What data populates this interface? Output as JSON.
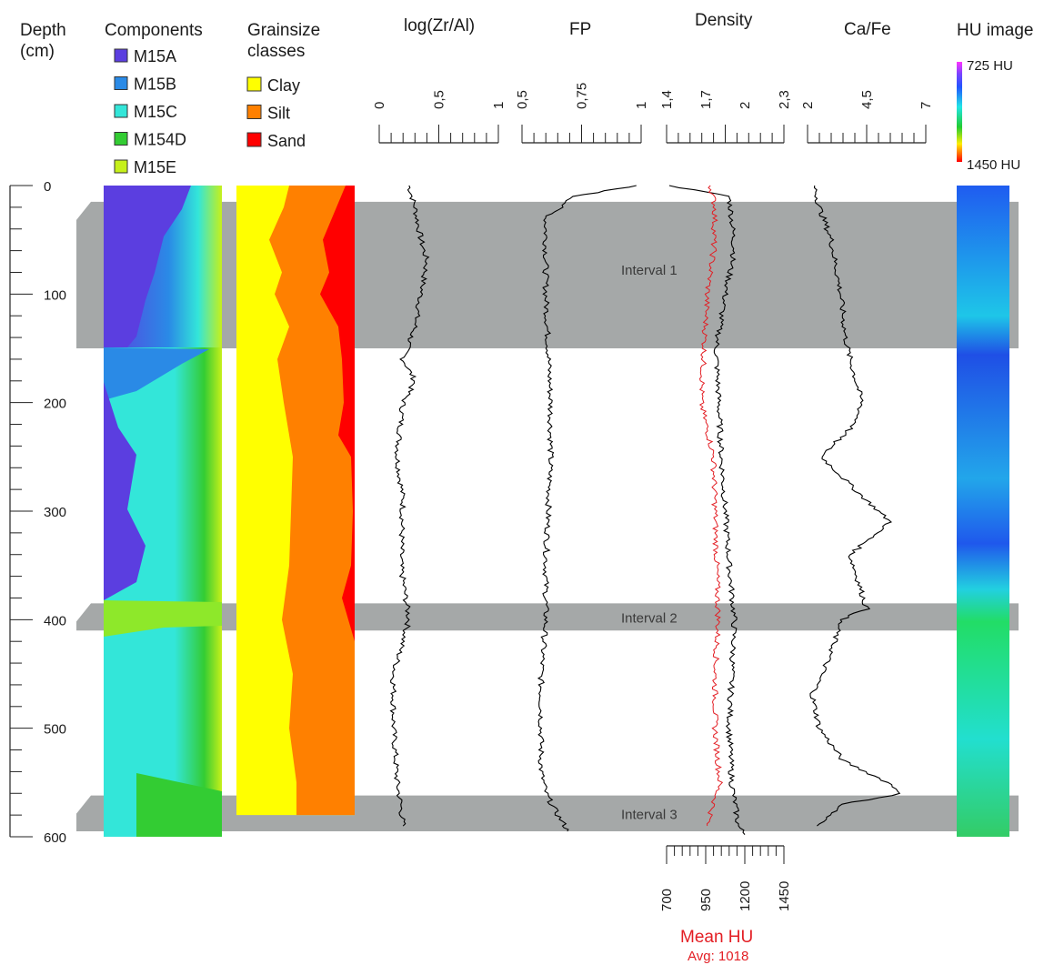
{
  "headers": {
    "depth": "Depth",
    "depth_unit": "(cm)",
    "components": "Components",
    "grainsize": "Grainsize",
    "grainsize2": "classes",
    "zral": "log(Zr/Al)",
    "fp": "FP",
    "density": "Density",
    "cafe": "Ca/Fe",
    "hu": "HU image"
  },
  "components_legend": [
    {
      "label": "M15A",
      "color": "#5b3ee0"
    },
    {
      "label": "M15B",
      "color": "#2a8ae6"
    },
    {
      "label": "M15C",
      "color": "#33e6d9"
    },
    {
      "label": "M154D",
      "color": "#33cc33"
    },
    {
      "label": "M15E",
      "color": "#c6f01a"
    }
  ],
  "grainsize_legend": [
    {
      "label": "Clay",
      "color": "#ffff00"
    },
    {
      "label": "Silt",
      "color": "#ff8000"
    },
    {
      "label": "Sand",
      "color": "#ff0000"
    }
  ],
  "hu_scale": {
    "top": "725 HU",
    "bottom": "1450 HU"
  },
  "intervals": [
    {
      "label": "Interval 1",
      "from": 15,
      "to": 150
    },
    {
      "label": "Interval 2",
      "from": 385,
      "to": 410
    },
    {
      "label": "Interval 3",
      "from": 562,
      "to": 595
    }
  ],
  "mean_hu": {
    "label": "Mean HU",
    "avg": "Avg: 1018"
  },
  "chart_data": {
    "type": "line",
    "depth_axis": {
      "label": "Depth (cm)",
      "range": [
        0,
        600
      ],
      "ticks": [
        "0",
        "100",
        "200",
        "300",
        "400",
        "500",
        "600"
      ]
    },
    "axes": [
      {
        "name": "log(Zr/Al)",
        "range": [
          0,
          1
        ],
        "ticks": [
          "0",
          "0,5",
          "1"
        ]
      },
      {
        "name": "FP",
        "range": [
          0.5,
          1
        ],
        "ticks": [
          "0,5",
          "0,75",
          "1"
        ]
      },
      {
        "name": "Density",
        "range": [
          1.4,
          2.3
        ],
        "ticks": [
          "1,4",
          "1,7",
          "2",
          "2,3"
        ]
      },
      {
        "name": "Ca/Fe",
        "range": [
          2,
          7
        ],
        "ticks": [
          "2",
          "4,5",
          "7"
        ]
      },
      {
        "name": "Mean HU",
        "range": [
          700,
          1450
        ],
        "ticks": [
          "700",
          "950",
          "1200",
          "1450"
        ]
      }
    ],
    "series": [
      {
        "name": "log(Zr/Al)",
        "depth": [
          0,
          20,
          50,
          70,
          100,
          130,
          145,
          160,
          180,
          200,
          250,
          290,
          350,
          400,
          450,
          500,
          550,
          570,
          590
        ],
        "values": [
          0.25,
          0.3,
          0.35,
          0.4,
          0.35,
          0.3,
          0.25,
          0.2,
          0.3,
          0.2,
          0.15,
          0.2,
          0.18,
          0.25,
          0.12,
          0.12,
          0.15,
          0.18,
          0.2
        ]
      },
      {
        "name": "FP",
        "depth": [
          0,
          3,
          10,
          30,
          100,
          150,
          200,
          250,
          300,
          350,
          400,
          450,
          500,
          540,
          560,
          580,
          590,
          595
        ],
        "values": [
          0.98,
          0.9,
          0.72,
          0.6,
          0.6,
          0.61,
          0.62,
          0.62,
          0.61,
          0.6,
          0.6,
          0.58,
          0.58,
          0.58,
          0.6,
          0.65,
          0.68,
          0.69
        ],
        "color": "#000000"
      },
      {
        "name": "Density",
        "depth": [
          0,
          10,
          30,
          60,
          100,
          150,
          200,
          250,
          300,
          350,
          400,
          450,
          500,
          550,
          590,
          598
        ],
        "values": [
          1.42,
          1.88,
          1.9,
          1.92,
          1.85,
          1.78,
          1.8,
          1.82,
          1.85,
          1.88,
          1.92,
          1.9,
          1.88,
          1.9,
          1.95,
          2.0
        ],
        "color": "#000000"
      },
      {
        "name": "Mean HU",
        "depth": [
          0,
          20,
          60,
          100,
          150,
          200,
          250,
          300,
          350,
          400,
          450,
          500,
          550,
          590
        ],
        "values": [
          980,
          1010,
          1000,
          960,
          940,
          920,
          1000,
          1010,
          1020,
          1030,
          1010,
          1010,
          1040,
          960
        ],
        "color": "#e31e24"
      },
      {
        "name": "Ca/Fe",
        "depth": [
          0,
          20,
          50,
          100,
          140,
          160,
          200,
          220,
          240,
          250,
          280,
          310,
          340,
          390,
          400,
          430,
          470,
          500,
          530,
          550,
          560,
          570,
          590
        ],
        "values": [
          2.3,
          2.5,
          3.0,
          3.4,
          3.6,
          3.8,
          4.3,
          4.0,
          3.0,
          2.6,
          4.0,
          5.5,
          3.8,
          4.5,
          3.4,
          3.0,
          2.2,
          2.5,
          3.5,
          5.4,
          6.0,
          3.5,
          2.4
        ],
        "color": "#000000"
      }
    ]
  }
}
